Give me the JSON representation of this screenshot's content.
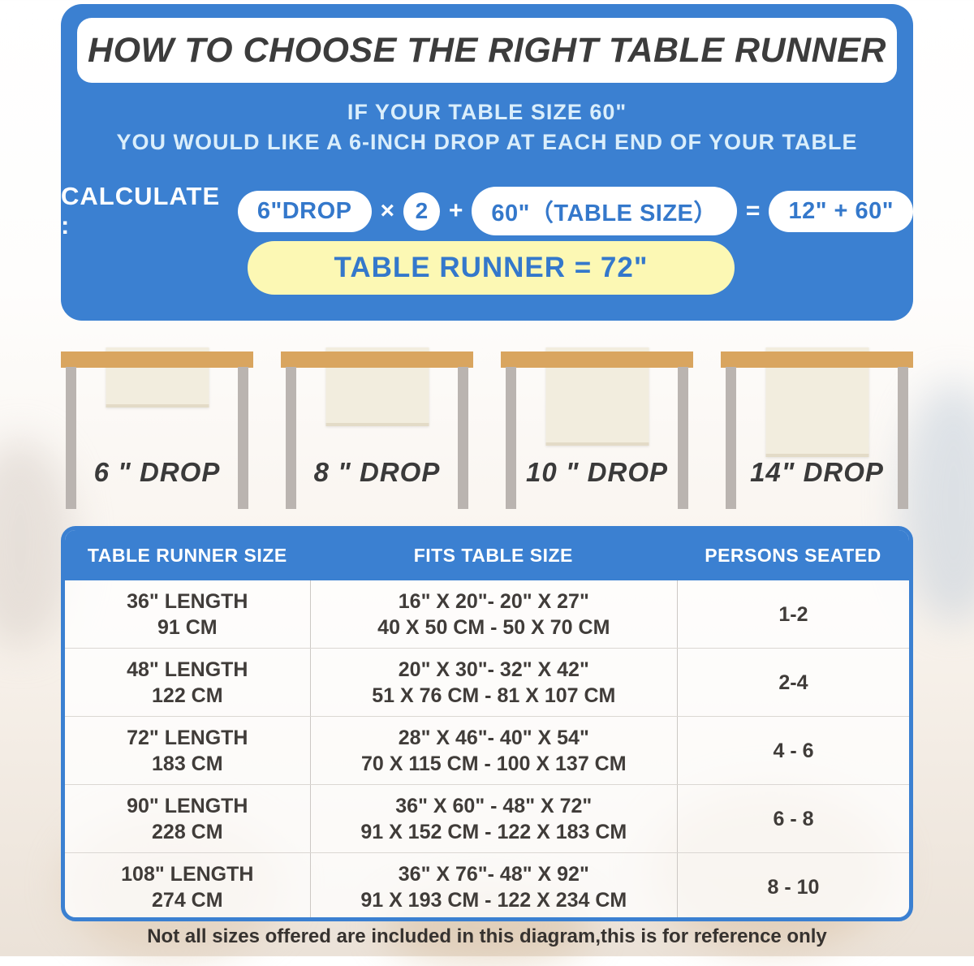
{
  "page": {
    "title": "HOW TO CHOOSE THE RIGHT TABLE RUNNER",
    "subtitle_line1": "IF YOUR TABLE SIZE 60\"",
    "subtitle_line2": "YOU WOULD LIKE A 6-INCH DROP AT EACH END OF YOUR TABLE",
    "note": "Not all sizes offered are included in this diagram,this is for reference only"
  },
  "calculate": {
    "label": "CALCULATE :",
    "drop_pill": "6\"DROP",
    "times": "×",
    "factor": "2",
    "plus": "+",
    "table_size_pill": "60\"（TABLE SIZE）",
    "equals": "=",
    "sum_pill": "12\" + 60\"",
    "result": "TABLE RUNNER = 72\""
  },
  "drops": [
    {
      "label": "6 \" DROP",
      "drop_inches": 6
    },
    {
      "label": "8 \" DROP",
      "drop_inches": 8
    },
    {
      "label": "10 \" DROP",
      "drop_inches": 10
    },
    {
      "label": "14\" DROP",
      "drop_inches": 14
    }
  ],
  "size_table": {
    "headers": [
      "TABLE RUNNER SIZE",
      "FITS TABLE SIZE",
      "PERSONS SEATED"
    ],
    "rows": [
      {
        "runner_line1": "36\" LENGTH",
        "runner_line2": "91 CM",
        "fits_line1": "16\" X 20\"- 20\" X 27\"",
        "fits_line2": "40 X 50 CM - 50 X 70 CM",
        "persons": "1-2"
      },
      {
        "runner_line1": "48\" LENGTH",
        "runner_line2": "122 CM",
        "fits_line1": "20\" X 30\"- 32\" X 42\"",
        "fits_line2": "51 X 76 CM - 81 X 107 CM",
        "persons": "2-4"
      },
      {
        "runner_line1": "72\" LENGTH",
        "runner_line2": "183 CM",
        "fits_line1": "28\" X 46\"- 40\" X 54\"",
        "fits_line2": "70 X 115 CM - 100 X 137 CM",
        "persons": "4 - 6"
      },
      {
        "runner_line1": "90\" LENGTH",
        "runner_line2": "228 CM",
        "fits_line1": "36\" X 60\" - 48\" X 72\"",
        "fits_line2": "91 X 152 CM - 122 X 183 CM",
        "persons": "6 - 8"
      },
      {
        "runner_line1": "108\" LENGTH",
        "runner_line2": "274 CM",
        "fits_line1": "36\" X 76\"- 48\" X 92\"",
        "fits_line2": "91 X 193 CM - 122 X 234 CM",
        "persons": "8 - 10"
      }
    ]
  },
  "colors": {
    "banner_blue": "#3b80d1",
    "pill_text_blue": "#3478cb",
    "result_yellow": "#fcf8b4",
    "tabletop_tan": "#d9a55f",
    "leg_gray": "#bab4b0",
    "runner_cream": "#f2edde",
    "title_dark": "#3c3c3c"
  }
}
